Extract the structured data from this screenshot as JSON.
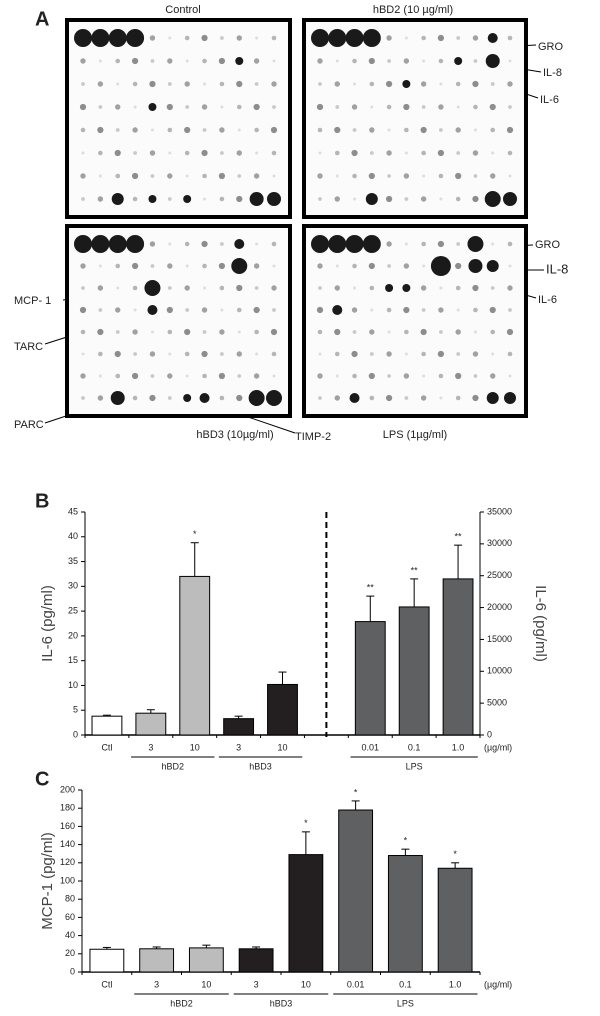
{
  "panel_a": {
    "letter": "A",
    "control": "Control",
    "hbd2": "hBD2 (10 µg/ml)",
    "hbd3": "hBD3 (10µg/ml)",
    "lps": "LPS (1µg/ml)",
    "gro_top": "GRO",
    "il8_top": "IL-8",
    "il6_top": "IL-6",
    "gro_bottom": "GRO",
    "il8_bottom": "IL-8",
    "il6_bottom": "IL-6",
    "mcp1": "MCP- 1",
    "tarc": "TARC",
    "parc": "PARC",
    "timp2": "TIMP-2"
  },
  "chart_data": [
    {
      "type": "bar",
      "panel": "B",
      "y_label": "IL-6 (pg/ml)",
      "y2_label": "IL-6 (pg/ml)",
      "unit": "(µg/ml)",
      "categories": [
        "Ctl",
        "3",
        "10",
        "3",
        "10",
        null,
        "0.01",
        "0.1",
        "1.0"
      ],
      "category_groups": [
        null,
        "hBD2",
        "hBD2",
        "hBD3",
        "hBD3",
        null,
        "LPS",
        "LPS",
        "LPS"
      ],
      "colors": [
        "#ffffff",
        "#bcbcbc",
        "#bcbcbc",
        "#231f20",
        "#231f20",
        null,
        "#5f6062",
        "#5f6062",
        "#5f6062"
      ],
      "series": [
        {
          "values": [
            3.8,
            4.4,
            32,
            3.3,
            10.2,
            null,
            null,
            null,
            null
          ],
          "errors": [
            0.2,
            0.7,
            6.8,
            0.5,
            2.5,
            null,
            null,
            null,
            null
          ]
        },
        {
          "axis": "y2",
          "values": [
            null,
            null,
            null,
            null,
            null,
            null,
            17800,
            20100,
            24500
          ],
          "errors": [
            null,
            null,
            null,
            null,
            null,
            null,
            4000,
            4400,
            5300
          ]
        }
      ],
      "significance": [
        null,
        null,
        "*",
        null,
        null,
        null,
        "**",
        "**",
        "**"
      ],
      "ylim": [
        0,
        45
      ],
      "yticks": [
        0,
        5,
        10,
        15,
        20,
        25,
        30,
        35,
        40,
        45
      ],
      "y2lim": [
        0,
        35000
      ],
      "y2ticks": [
        0,
        5000,
        10000,
        15000,
        20000,
        25000,
        30000,
        35000
      ]
    },
    {
      "type": "bar",
      "panel": "C",
      "y_label": "MCP-1 (pg/ml)",
      "unit": "(µg/ml)",
      "categories": [
        "Ctl",
        "3",
        "10",
        "3",
        "10",
        "0.01",
        "0.1",
        "1.0"
      ],
      "category_groups": [
        null,
        "hBD2",
        "hBD2",
        "hBD3",
        "hBD3",
        "LPS",
        "LPS",
        "LPS"
      ],
      "colors": [
        "#ffffff",
        "#bcbcbc",
        "#bcbcbc",
        "#231f20",
        "#231f20",
        "#5f6062",
        "#5f6062",
        "#5f6062"
      ],
      "series": [
        {
          "values": [
            25,
            25.5,
            26.5,
            25.5,
            129,
            178,
            128,
            114
          ],
          "errors": [
            2,
            2,
            3,
            2,
            25,
            10,
            7,
            6
          ]
        }
      ],
      "significance": [
        null,
        null,
        null,
        null,
        "*",
        "*",
        "*",
        "*"
      ],
      "ylim": [
        0,
        200
      ],
      "yticks": [
        0,
        20,
        40,
        60,
        80,
        100,
        120,
        140,
        160,
        180,
        200
      ]
    }
  ]
}
